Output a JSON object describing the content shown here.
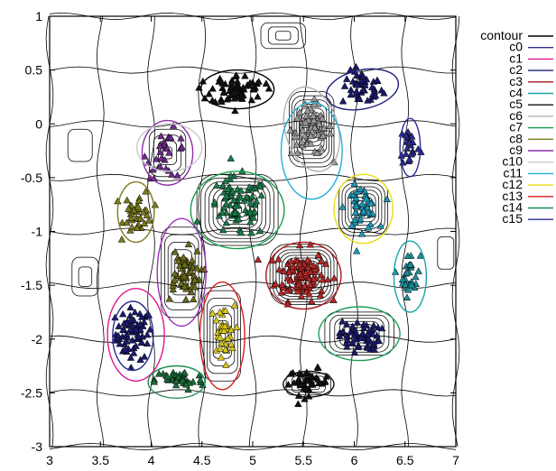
{
  "chart_data": {
    "type": "scatter",
    "xlim": [
      3,
      7
    ],
    "ylim": [
      -3,
      1
    ],
    "x_ticks": [
      "3",
      "3.5",
      "4",
      "4.5",
      "5",
      "5.5",
      "6",
      "6.5",
      "7"
    ],
    "y_ticks": [
      "1",
      "0.5",
      "0",
      "-0.5",
      "-1",
      "-1.5",
      "-2",
      "-2.5",
      "-3"
    ],
    "legend_placement": "outside-right",
    "contour_series": {
      "name": "contour",
      "color": "#000000"
    },
    "clusters": [
      {
        "name": "c0",
        "color": "#1a1a6e",
        "ellipse_color": "#2b2b8f",
        "center": [
          3.83,
          -1.95
        ],
        "spread": [
          0.09,
          0.12
        ],
        "n": 70,
        "ellipse": {
          "cx": 3.82,
          "cy": -1.97,
          "rx": 0.2,
          "ry": 0.32,
          "rot": 0
        }
      },
      {
        "name": "c1",
        "color": "#cc2f7f",
        "ellipse_color": "#e0168f",
        "center": [
          3.85,
          -1.95
        ],
        "spread": [
          0.09,
          0.12
        ],
        "n": 0,
        "ellipse": {
          "cx": 3.85,
          "cy": -1.96,
          "rx": 0.28,
          "ry": 0.43,
          "rot": 0
        }
      },
      {
        "name": "c2",
        "color": "#1a1a6e",
        "ellipse_color": "#1f1f7a",
        "center": [
          6.08,
          0.33
        ],
        "spread": [
          0.1,
          0.08
        ],
        "n": 45,
        "ellipse": {
          "cx": 6.08,
          "cy": 0.32,
          "rx": 0.36,
          "ry": 0.18,
          "rot": 12
        }
      },
      {
        "name": "c3",
        "color": "#b42828",
        "ellipse_color": "#a8161f",
        "center": [
          5.47,
          -1.4
        ],
        "spread": [
          0.12,
          0.12
        ],
        "n": 110,
        "ellipse": {
          "cx": 5.5,
          "cy": -1.41,
          "rx": 0.37,
          "ry": 0.31,
          "rot": 0
        }
      },
      {
        "name": "c4",
        "color": "#1a8f9a",
        "ellipse_color": "#1aa5a5",
        "center": [
          6.55,
          -1.4
        ],
        "spread": [
          0.05,
          0.1
        ],
        "n": 30,
        "ellipse": {
          "cx": 6.55,
          "cy": -1.42,
          "rx": 0.16,
          "ry": 0.33,
          "rot": 0
        }
      },
      {
        "name": "c5",
        "color": "#111111",
        "ellipse_color": "#111111",
        "center": [
          5.55,
          -2.4
        ],
        "spread": [
          0.1,
          0.06
        ],
        "n": 40,
        "ellipse": {
          "cx": 5.55,
          "cy": -2.42,
          "rx": 0.25,
          "ry": 0.12,
          "rot": 0
        }
      },
      {
        "name": "c6",
        "color": "#999999",
        "ellipse_color": "#b0b0b0",
        "center": [
          5.58,
          -0.05
        ],
        "spread": [
          0.1,
          0.12
        ],
        "n": 70,
        "ellipse": {
          "cx": 5.58,
          "cy": -0.05,
          "rx": 0.26,
          "ry": 0.4,
          "rot": 15
        }
      },
      {
        "name": "c7",
        "color": "#1a7a4a",
        "ellipse_color": "#169e4e",
        "center": [
          4.85,
          -0.78
        ],
        "spread": [
          0.15,
          0.14
        ],
        "n": 75,
        "ellipse": {
          "cx": 4.85,
          "cy": -0.8,
          "rx": 0.46,
          "ry": 0.36,
          "rot": 0
        }
      },
      {
        "name": "c8",
        "color": "#7a7a1a",
        "ellipse_color": "#7d7d1e",
        "center": [
          3.87,
          -0.82
        ],
        "spread": [
          0.07,
          0.1
        ],
        "n": 40,
        "ellipse": {
          "cx": 3.85,
          "cy": -0.82,
          "rx": 0.18,
          "ry": 0.28,
          "rot": 0
        }
      },
      {
        "name": "c9",
        "color": "#6e2a8f",
        "ellipse_color": "#8a2fa5",
        "center": [
          4.16,
          -0.28
        ],
        "spread": [
          0.1,
          0.11
        ],
        "n": 30,
        "ellipse": {
          "cx": 4.16,
          "cy": -0.27,
          "rx": 0.25,
          "ry": 0.3,
          "rot": 0
        }
      },
      {
        "name": "c10",
        "color": "#888888",
        "ellipse_color": "#c8c8c8",
        "center": [
          4.15,
          -0.23
        ],
        "spread": [
          0.1,
          0.11
        ],
        "n": 0,
        "ellipse": {
          "cx": 4.18,
          "cy": -0.22,
          "rx": 0.32,
          "ry": 0.22,
          "rot": 0
        }
      },
      {
        "name": "c11",
        "color": "#1a9ab8",
        "ellipse_color": "#22b0d8",
        "center": [
          6.07,
          -0.78
        ],
        "spread": [
          0.08,
          0.1
        ],
        "n": 45,
        "ellipse": {
          "cx": 5.58,
          "cy": -0.25,
          "rx": 0.3,
          "ry": 0.45,
          "rot": 0
        }
      },
      {
        "name": "c12",
        "color": "#d8c81a",
        "ellipse_color": "#e8de18",
        "center": [
          4.7,
          -1.95
        ],
        "spread": [
          0.06,
          0.13
        ],
        "n": 35,
        "ellipse": {
          "cx": 6.09,
          "cy": -0.79,
          "rx": 0.29,
          "ry": 0.32,
          "rot": 0
        }
      },
      {
        "name": "c13",
        "color": "#c82020",
        "ellipse_color": "#d81e1e",
        "center": [
          4.72,
          -1.95
        ],
        "spread": [
          0.06,
          0.13
        ],
        "n": 0,
        "ellipse": {
          "cx": 4.7,
          "cy": -1.97,
          "rx": 0.22,
          "ry": 0.5,
          "rot": 0
        }
      },
      {
        "name": "c14",
        "color": "#1a6a3a",
        "ellipse_color": "#1e8a52",
        "center": [
          4.28,
          -2.38
        ],
        "spread": [
          0.12,
          0.05
        ],
        "n": 40,
        "ellipse": {
          "cx": 4.25,
          "cy": -2.4,
          "rx": 0.28,
          "ry": 0.15,
          "rot": 0
        }
      },
      {
        "name": "c15",
        "color": "#2a2a8f",
        "ellipse_color": "#2a2a9a",
        "center": [
          6.55,
          -0.2
        ],
        "spread": [
          0.05,
          0.1
        ],
        "n": 25,
        "ellipse": {
          "cx": 6.55,
          "cy": -0.22,
          "rx": 0.1,
          "ry": 0.27,
          "rot": 0
        }
      },
      {
        "name": "",
        "color": "#111111",
        "ellipse_color": "#000000",
        "center": [
          4.85,
          0.32
        ],
        "spread": [
          0.13,
          0.07
        ],
        "n": 65,
        "ellipse": {
          "cx": 4.85,
          "cy": 0.32,
          "rx": 0.36,
          "ry": 0.18,
          "rot": 0
        }
      },
      {
        "name": "",
        "color": "#6a6a1a",
        "ellipse_color": "#9a2fb8",
        "center": [
          4.31,
          -1.4
        ],
        "spread": [
          0.09,
          0.12
        ],
        "n": 55,
        "ellipse": {
          "cx": 4.3,
          "cy": -1.38,
          "rx": 0.24,
          "ry": 0.5,
          "rot": 0
        }
      },
      {
        "name": "",
        "color": "#1a1a6e",
        "ellipse_color": "#1fa05a",
        "center": [
          6.05,
          -1.97
        ],
        "spread": [
          0.1,
          0.07
        ],
        "n": 55,
        "ellipse": {
          "cx": 6.05,
          "cy": -1.95,
          "rx": 0.4,
          "ry": 0.25,
          "rot": 0
        }
      }
    ],
    "contour_blobs": [
      {
        "x": 4.85,
        "y": -0.8,
        "n": 10,
        "rx": 0.4,
        "ry": 0.33
      },
      {
        "x": 5.5,
        "y": -1.4,
        "n": 11,
        "rx": 0.33,
        "ry": 0.28
      },
      {
        "x": 5.58,
        "y": -0.05,
        "n": 9,
        "rx": 0.22,
        "ry": 0.35
      },
      {
        "x": 6.09,
        "y": -0.78,
        "n": 8,
        "rx": 0.24,
        "ry": 0.26
      },
      {
        "x": 6.05,
        "y": -1.95,
        "n": 7,
        "rx": 0.34,
        "ry": 0.2
      },
      {
        "x": 4.3,
        "y": -1.38,
        "n": 6,
        "rx": 0.2,
        "ry": 0.42
      },
      {
        "x": 4.7,
        "y": -1.97,
        "n": 6,
        "rx": 0.18,
        "ry": 0.42
      },
      {
        "x": 5.55,
        "y": -2.42,
        "n": 4,
        "rx": 0.22,
        "ry": 0.1
      },
      {
        "x": 4.16,
        "y": -0.27,
        "n": 4,
        "rx": 0.18,
        "ry": 0.22
      },
      {
        "x": 5.3,
        "y": 0.82,
        "n": 3,
        "rx": 0.22,
        "ry": 0.12
      },
      {
        "x": 3.3,
        "y": -0.2,
        "n": 1,
        "rx": 0.12,
        "ry": 0.15
      },
      {
        "x": 3.35,
        "y": -1.42,
        "n": 2,
        "rx": 0.13,
        "ry": 0.18
      },
      {
        "x": 6.9,
        "y": -1.2,
        "n": 1,
        "rx": 0.08,
        "ry": 0.15
      }
    ]
  },
  "legend": {
    "entries": [
      {
        "label": "contour",
        "color": "#000000"
      },
      {
        "label": "c0",
        "color": "#2b2b8f"
      },
      {
        "label": "c1",
        "color": "#e0168f"
      },
      {
        "label": "c2",
        "color": "#1f1f7a"
      },
      {
        "label": "c3",
        "color": "#a8161f"
      },
      {
        "label": "c4",
        "color": "#1aa5a5"
      },
      {
        "label": "c5",
        "color": "#111111"
      },
      {
        "label": "c6",
        "color": "#b0b0b0"
      },
      {
        "label": "c7",
        "color": "#169e4e"
      },
      {
        "label": "c8",
        "color": "#7d7d1e"
      },
      {
        "label": "c9",
        "color": "#8a2fa5"
      },
      {
        "label": "c10",
        "color": "#c8c8c8"
      },
      {
        "label": "c11",
        "color": "#22b0d8"
      },
      {
        "label": "c12",
        "color": "#e8de18"
      },
      {
        "label": "c13",
        "color": "#d81e1e"
      },
      {
        "label": "c14",
        "color": "#1e8a52"
      },
      {
        "label": "c15",
        "color": "#2a2a9a"
      }
    ]
  }
}
